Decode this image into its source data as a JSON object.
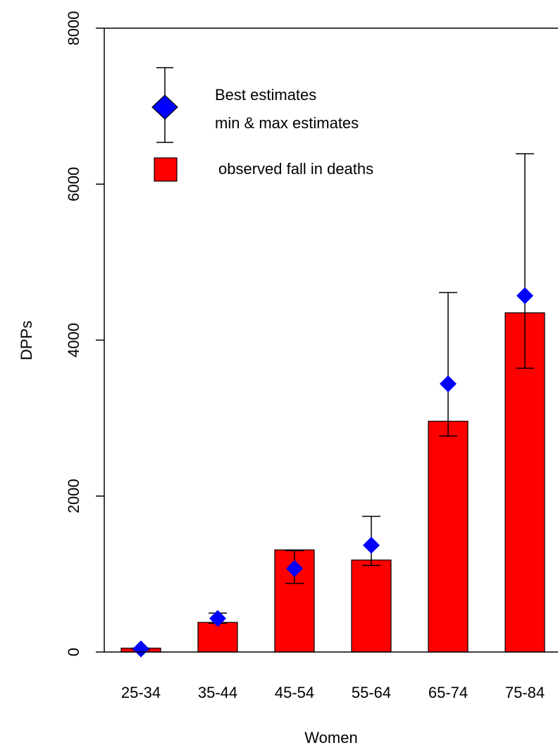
{
  "chart_data": {
    "type": "bar",
    "xlabel": "Women",
    "ylabel": "DPPs",
    "ylim": [
      0,
      8000
    ],
    "yticks": [
      0,
      2000,
      4000,
      6000,
      8000
    ],
    "categories": [
      "25-34",
      "35-44",
      "45-54",
      "55-64",
      "65-74",
      "75-84"
    ],
    "bars": {
      "name": "observed fall in deaths",
      "color": "#ff0000",
      "values": [
        50,
        380,
        1310,
        1180,
        2960,
        4350
      ]
    },
    "estimates": {
      "name": "Best estimates",
      "range_name": "min & max estimates",
      "color": "#0000ff",
      "best": [
        40,
        430,
        1070,
        1370,
        3440,
        4570
      ],
      "min": [
        30,
        370,
        880,
        1110,
        2770,
        3640
      ],
      "max": [
        50,
        500,
        1300,
        1740,
        4610,
        6390
      ]
    },
    "legend_position": "top-left"
  }
}
